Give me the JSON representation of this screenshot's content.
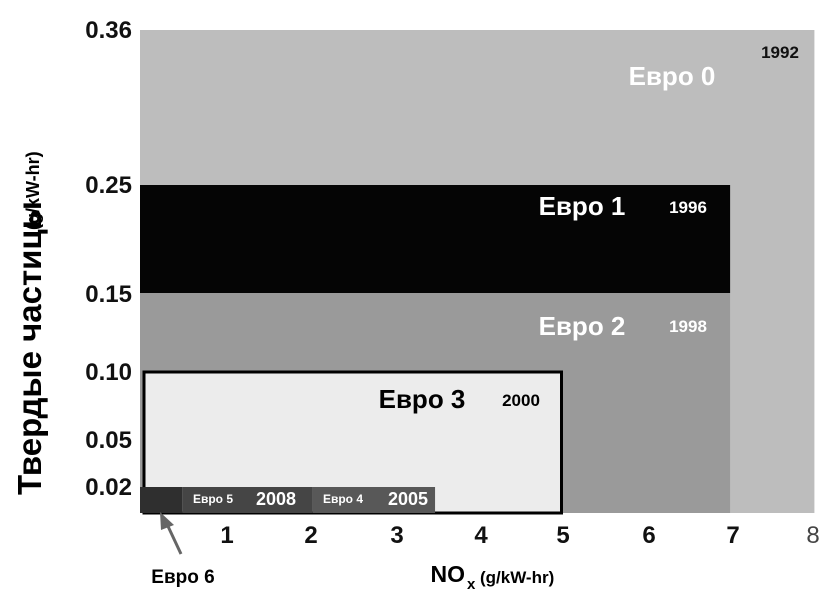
{
  "chart_data": {
    "type": "area",
    "title": "",
    "xlabel": "NO",
    "xlabel_sub": "x",
    "xlabel_unit": "(g/kW-hr)",
    "ylabel": "Твердые частицы",
    "ylabel_unit": "(g/kW-hr)",
    "x_ticks": [
      "1",
      "2",
      "3",
      "4",
      "5",
      "6",
      "7",
      "8"
    ],
    "y_ticks": [
      "0.36",
      "0.25",
      "0.15",
      "0.10",
      "0.05",
      "0.02"
    ],
    "xlim": [
      0,
      8
    ],
    "ylim": [
      0,
      0.36
    ],
    "grid": false,
    "series": [
      {
        "name": "Евро 0",
        "year": "1992",
        "nox": 8,
        "pm": 0.36,
        "color": "#bdbdbd"
      },
      {
        "name": "Евро 2",
        "year": "1998",
        "nox": 7,
        "pm": 0.15,
        "color": "#9a9a9a"
      },
      {
        "name": "Евро 1",
        "year": "1996",
        "nox": 7,
        "pm": 0.25,
        "color": "#050505"
      },
      {
        "name": "Евро 3",
        "year": "2000",
        "nox": 5,
        "pm": 0.1,
        "color": "#ececec"
      },
      {
        "name": "Евро 4",
        "year": "2005",
        "nox": 3.5,
        "pm": 0.02,
        "color": "#585858"
      },
      {
        "name": "Евро 5",
        "year": "2008",
        "nox": 2,
        "pm": 0.005,
        "color": "#454545"
      },
      {
        "name": "Евро 6",
        "year": "",
        "nox": 0.4,
        "pm": 0.01,
        "color": "#2f2f2f"
      }
    ]
  }
}
